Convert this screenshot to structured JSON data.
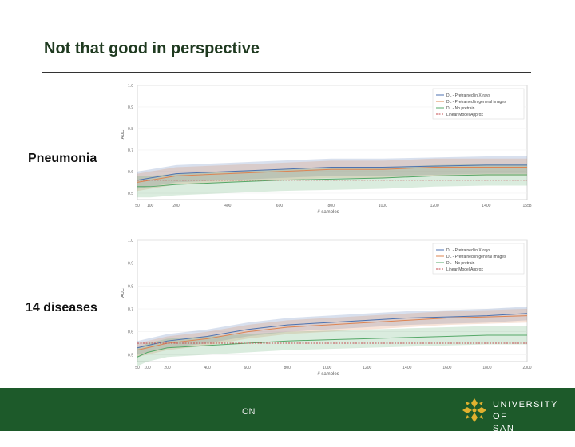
{
  "slide": {
    "title": "Not that good in perspective",
    "label_top": "Pneumonia",
    "label_bottom": "14 diseases",
    "footer_text": "ON",
    "university_line1": "UNIVERSITY OF",
    "university_line2": "SAN FRANCISCO"
  },
  "colors": {
    "footer_bg": "#1d5a2a",
    "logo_gold": "#e0b12f",
    "series_blue": "#4c72b0",
    "series_orange": "#dd8452",
    "series_green": "#55a868",
    "series_red": "#c44e52"
  },
  "chart_data": [
    {
      "type": "line",
      "name": "Pneumonia",
      "xlabel": "# samples",
      "ylabel": "AUC",
      "xticks": [
        50,
        100,
        200,
        400,
        600,
        800,
        1000,
        1200,
        1400,
        1558
      ],
      "yticks": [
        0.5,
        0.6,
        0.7,
        0.8,
        0.9,
        1.0
      ],
      "xlim": [
        50,
        1558
      ],
      "ylim": [
        0.47,
        1.0
      ],
      "legend_position": "top-right",
      "series": [
        {
          "name": "DL - Pretrained in X-rays",
          "color": "#4c72b0",
          "style": "solid",
          "x": [
            50,
            100,
            200,
            400,
            600,
            800,
            1000,
            1200,
            1400,
            1558
          ],
          "y": [
            0.56,
            0.57,
            0.59,
            0.6,
            0.61,
            0.62,
            0.62,
            0.625,
            0.63,
            0.63
          ],
          "band": 0.04
        },
        {
          "name": "DL - Pretrained in general images",
          "color": "#dd8452",
          "style": "solid",
          "x": [
            50,
            100,
            200,
            400,
            600,
            800,
            1000,
            1200,
            1400,
            1558
          ],
          "y": [
            0.55,
            0.56,
            0.58,
            0.59,
            0.6,
            0.61,
            0.61,
            0.62,
            0.62,
            0.62
          ],
          "band": 0.04
        },
        {
          "name": "DL - No pretrain",
          "color": "#55a868",
          "style": "solid",
          "x": [
            50,
            100,
            200,
            400,
            600,
            800,
            1000,
            1200,
            1400,
            1558
          ],
          "y": [
            0.53,
            0.53,
            0.54,
            0.55,
            0.56,
            0.565,
            0.57,
            0.58,
            0.585,
            0.585
          ],
          "band": 0.05
        },
        {
          "name": "Linear Model Approx",
          "color": "#c44e52",
          "style": "dashed",
          "x": [
            50,
            1558
          ],
          "y": [
            0.56,
            0.56
          ],
          "band": 0
        }
      ]
    },
    {
      "type": "line",
      "name": "14 diseases",
      "xlabel": "# samples",
      "ylabel": "AUC",
      "xticks": [
        50,
        100,
        200,
        400,
        600,
        800,
        1000,
        1200,
        1400,
        1600,
        1800,
        2000
      ],
      "yticks": [
        0.5,
        0.6,
        0.7,
        0.8,
        0.9,
        1.0
      ],
      "xlim": [
        50,
        2000
      ],
      "ylim": [
        0.47,
        1.0
      ],
      "legend_position": "top-right",
      "series": [
        {
          "name": "DL - Pretrained in X-rays",
          "color": "#4c72b0",
          "style": "solid",
          "x": [
            50,
            100,
            200,
            400,
            600,
            800,
            1000,
            1200,
            1400,
            1600,
            1800,
            2000
          ],
          "y": [
            0.53,
            0.54,
            0.56,
            0.58,
            0.61,
            0.63,
            0.64,
            0.65,
            0.66,
            0.665,
            0.67,
            0.68
          ],
          "band": 0.03
        },
        {
          "name": "DL - Pretrained in general images",
          "color": "#dd8452",
          "style": "solid",
          "x": [
            50,
            100,
            200,
            400,
            600,
            800,
            1000,
            1200,
            1400,
            1600,
            1800,
            2000
          ],
          "y": [
            0.52,
            0.53,
            0.55,
            0.57,
            0.6,
            0.62,
            0.63,
            0.64,
            0.65,
            0.66,
            0.665,
            0.67
          ],
          "band": 0.03
        },
        {
          "name": "DL - No pretrain",
          "color": "#55a868",
          "style": "solid",
          "x": [
            50,
            100,
            200,
            400,
            600,
            800,
            1000,
            1200,
            1400,
            1600,
            1800,
            2000
          ],
          "y": [
            0.49,
            0.51,
            0.53,
            0.54,
            0.55,
            0.56,
            0.565,
            0.57,
            0.575,
            0.58,
            0.585,
            0.585
          ],
          "band": 0.04
        },
        {
          "name": "Linear Model Approx",
          "color": "#c44e52",
          "style": "dashed",
          "x": [
            50,
            2000
          ],
          "y": [
            0.55,
            0.55
          ],
          "band": 0
        }
      ]
    }
  ]
}
